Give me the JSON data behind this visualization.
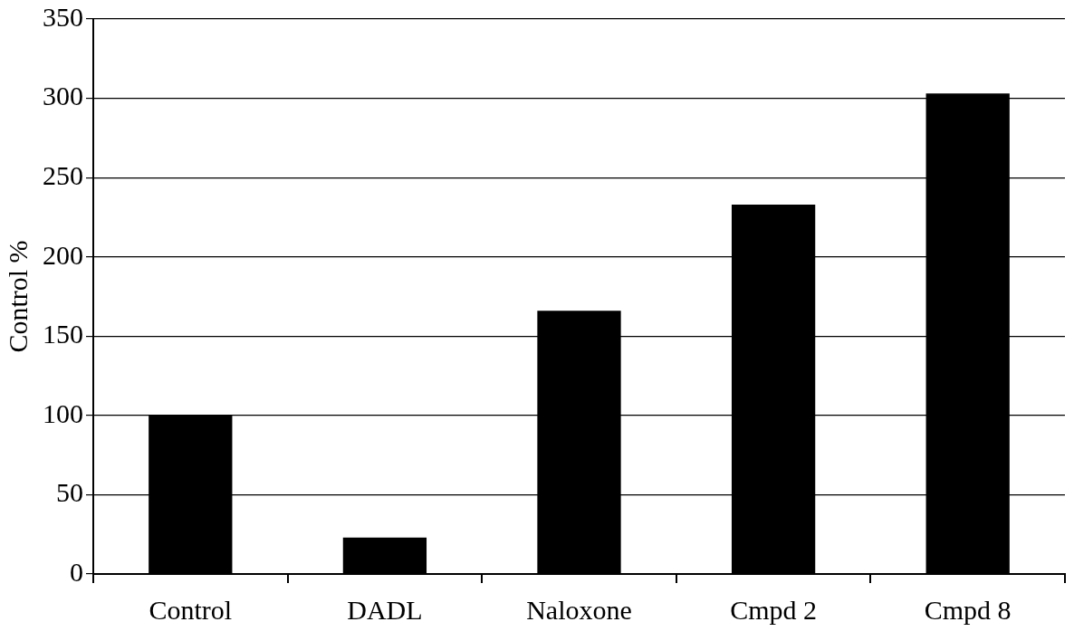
{
  "chart_data": {
    "type": "bar",
    "ylabel": "Control %",
    "categories": [
      "Control",
      "DADL",
      "Naloxone",
      "Cmpd 2",
      "Cmpd 8"
    ],
    "values": [
      100,
      23,
      166,
      233,
      303
    ],
    "color": "#000000",
    "ylim": [
      0,
      350
    ],
    "yticks": [
      0,
      50,
      100,
      150,
      200,
      250,
      300,
      350
    ],
    "grid": "y"
  }
}
